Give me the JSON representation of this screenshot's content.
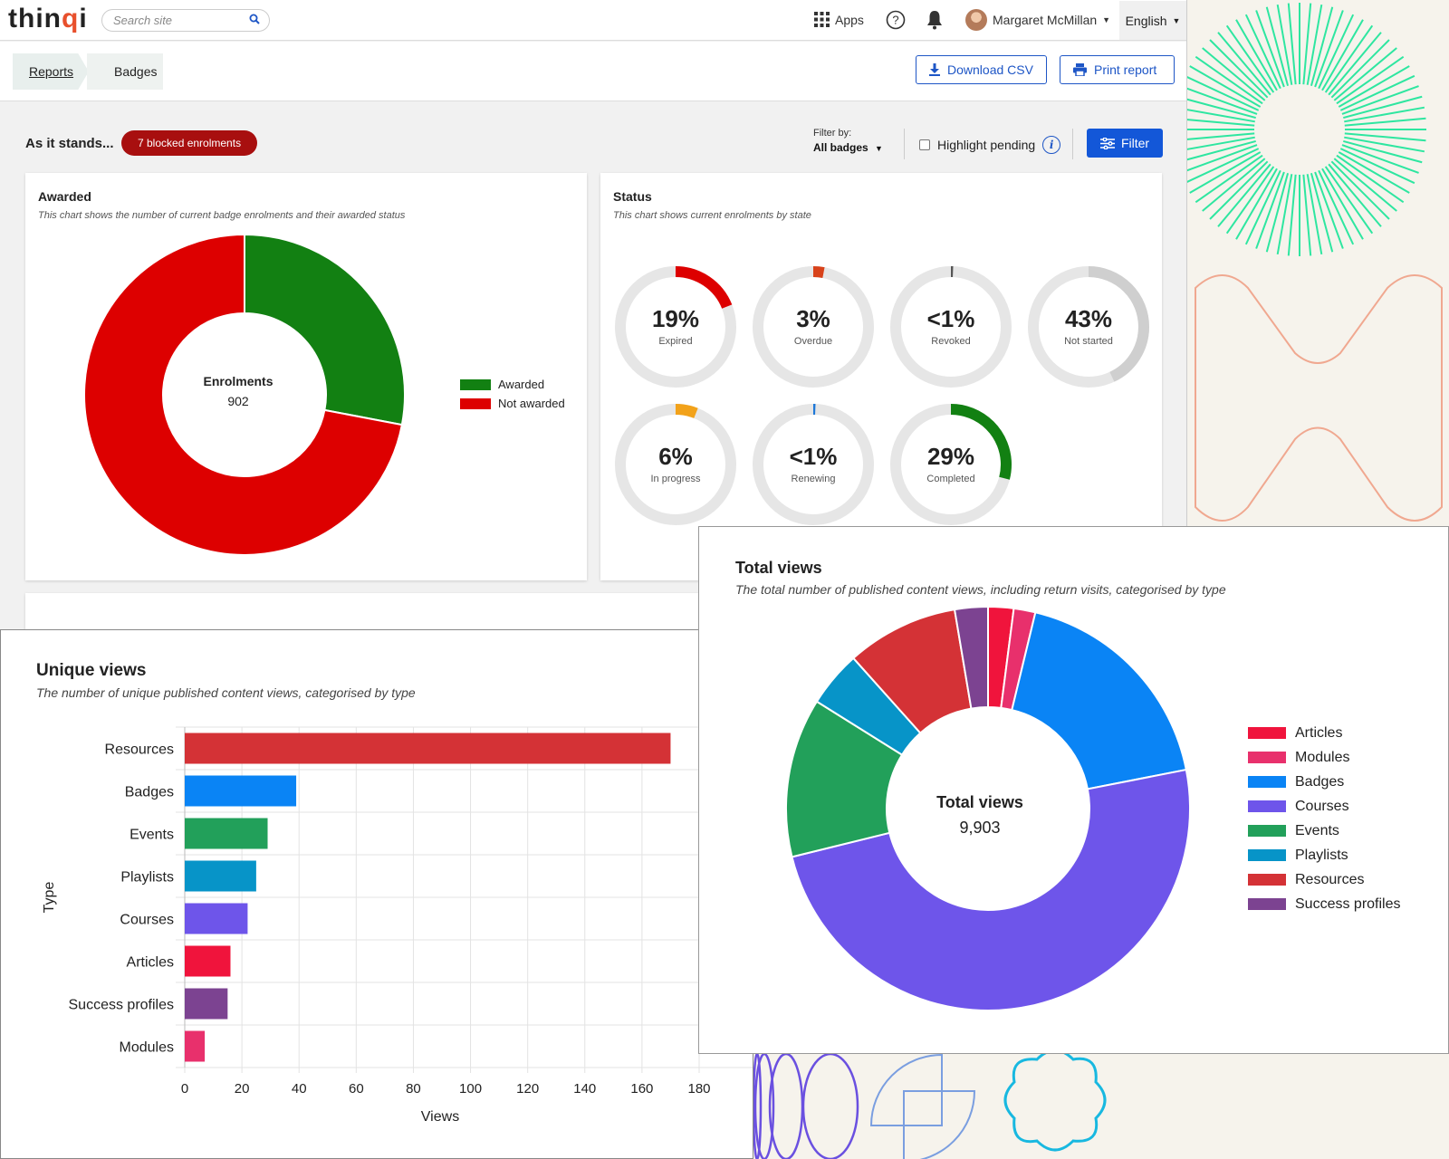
{
  "header": {
    "logo_main": "thin",
    "logo_accent": "q",
    "logo_end": "i",
    "search_placeholder": "Search site",
    "apps_label": "Apps",
    "user_name": "Margaret McMillan",
    "language": "English"
  },
  "breadcrumb": {
    "reports": "Reports",
    "badges": "Badges"
  },
  "actions": {
    "download_csv": "Download CSV",
    "print_report": "Print report"
  },
  "toolbar": {
    "as_it_stands": "As it stands...",
    "blocked_badge": "7 blocked enrolments",
    "filter_by_label": "Filter by:",
    "filter_by_value": "All badges",
    "highlight_pending": "Highlight pending",
    "filter_button": "Filter"
  },
  "awarded_card": {
    "title": "Awarded",
    "subtitle": "This chart shows the number of current badge enrolments and their awarded status",
    "center_label": "Enrolments",
    "center_value": "902"
  },
  "status_card": {
    "title": "Status",
    "subtitle": "This chart shows current enrolments by state"
  },
  "unique_views": {
    "title": "Unique views",
    "subtitle": "The number of unique published content views, categorised by type"
  },
  "total_views": {
    "title": "Total views",
    "subtitle": "The total number of published content views, including return visits, categorised by type",
    "center_label": "Total views",
    "center_value": "9,903"
  },
  "colors": {
    "awarded": "#128012",
    "not_awarded": "#dd0000",
    "articles": "#f0143c",
    "modules": "#e8306c",
    "badges": "#0a84f5",
    "courses": "#6e55ea",
    "events": "#22a05a",
    "playlists": "#0794c8",
    "resources": "#d43236",
    "success_profiles": "#7c4391",
    "expired": "#dd0000",
    "overdue": "#d8421a",
    "revoked": "#555555",
    "not_started": "#cfcfcf",
    "in_progress": "#f2a21a",
    "renewing": "#1e78d8",
    "completed": "#128012",
    "primary": "#1357d8",
    "blocked": "#a80f0f"
  },
  "chart_data": [
    {
      "id": "awarded",
      "type": "pie",
      "title": "Awarded",
      "categories": [
        "Awarded",
        "Not awarded"
      ],
      "values": [
        28,
        72
      ],
      "legend": "right"
    },
    {
      "id": "status",
      "type": "pie",
      "title": "Status",
      "items": [
        {
          "key": "expired",
          "pct_label": "19%",
          "label": "Expired",
          "value": 19
        },
        {
          "key": "overdue",
          "pct_label": "3%",
          "label": "Overdue",
          "value": 3
        },
        {
          "key": "revoked",
          "pct_label": "<1%",
          "label": "Revoked",
          "value": 0.4
        },
        {
          "key": "not_started",
          "pct_label": "43%",
          "label": "Not started",
          "value": 43
        },
        {
          "key": "in_progress",
          "pct_label": "6%",
          "label": "In progress",
          "value": 6
        },
        {
          "key": "renewing",
          "pct_label": "<1%",
          "label": "Renewing",
          "value": 0.4
        },
        {
          "key": "completed",
          "pct_label": "29%",
          "label": "Completed",
          "value": 29
        }
      ]
    },
    {
      "id": "unique_views",
      "type": "bar",
      "orientation": "horizontal",
      "title": "Unique views",
      "xlabel": "Views",
      "ylabel": "Type",
      "xlim": [
        0,
        180
      ],
      "xticks": [
        0,
        20,
        40,
        60,
        80,
        100,
        120,
        140,
        160,
        180
      ],
      "categories": [
        "Resources",
        "Badges",
        "Events",
        "Playlists",
        "Courses",
        "Articles",
        "Success profiles",
        "Modules"
      ],
      "values": [
        170,
        39,
        29,
        25,
        22,
        16,
        15,
        7
      ]
    },
    {
      "id": "total_views",
      "type": "pie",
      "title": "Total views",
      "categories": [
        "Articles",
        "Modules",
        "Badges",
        "Courses",
        "Events",
        "Playlists",
        "Resources",
        "Success profiles"
      ],
      "values": [
        2,
        1.7,
        17.8,
        48.3,
        12.5,
        4.4,
        8.8,
        2.6
      ],
      "legend": "right"
    }
  ]
}
